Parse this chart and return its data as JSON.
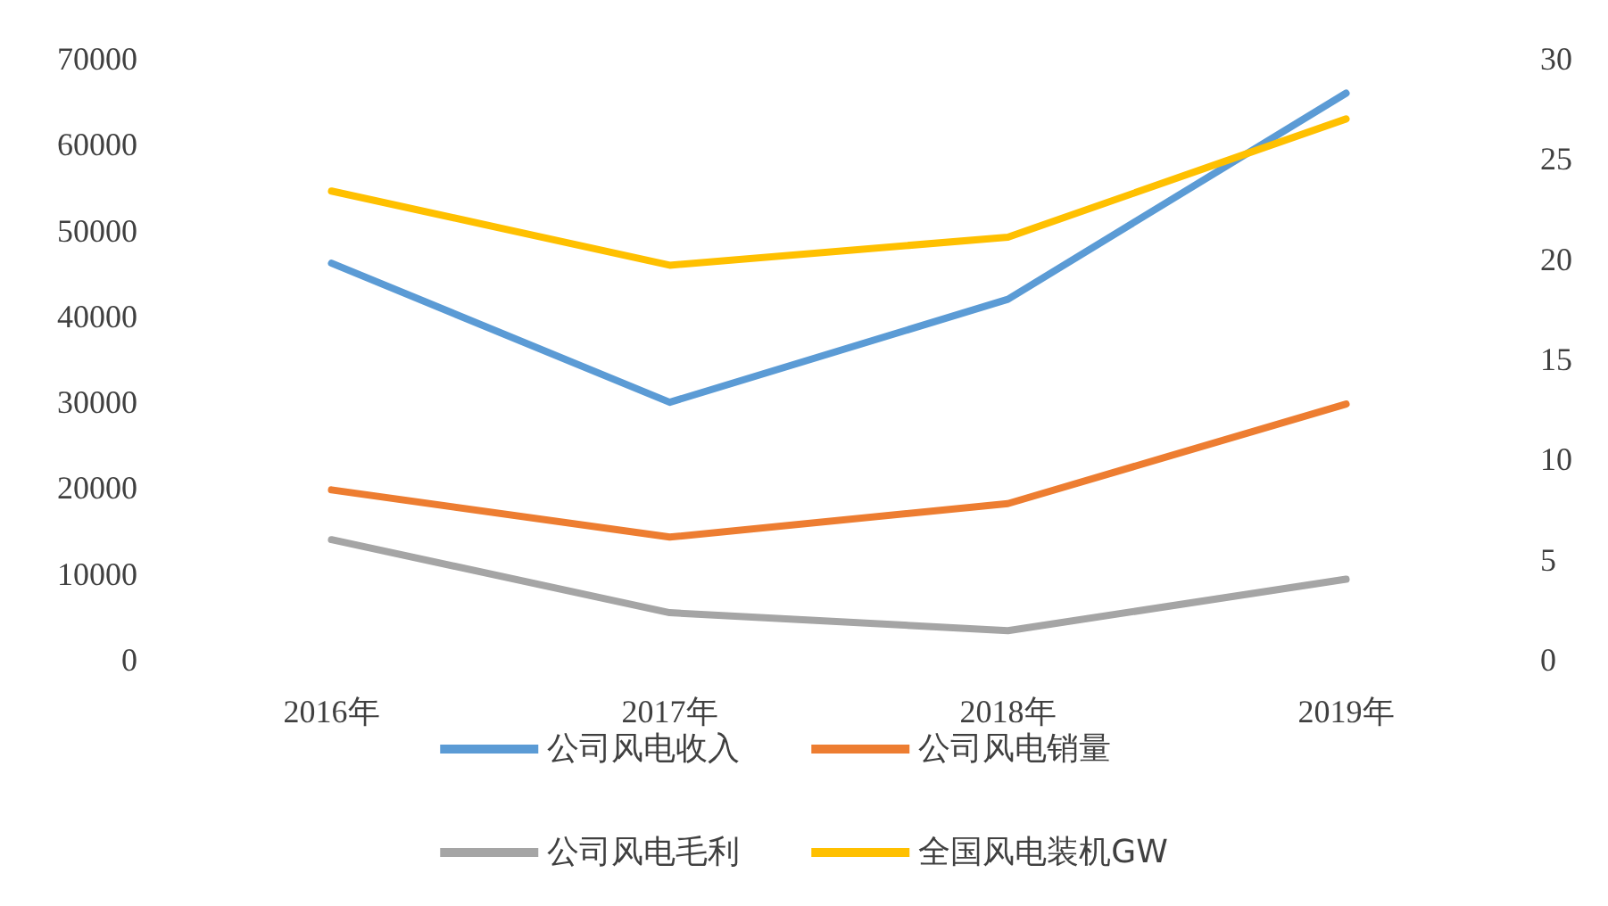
{
  "chart_data": {
    "type": "line",
    "categories": [
      "2016年",
      "2017年",
      "2018年",
      "2019年"
    ],
    "series": [
      {
        "name": "公司风电收入",
        "color": "#5b9bd5",
        "values": [
          46200,
          30000,
          42000,
          66000
        ]
      },
      {
        "name": "公司风电销量",
        "color": "#ed7d31",
        "values": [
          19800,
          14300,
          18200,
          29800
        ]
      },
      {
        "name": "公司风电毛利",
        "color": "#a5a5a5",
        "values": [
          14000,
          5500,
          3400,
          9400
        ]
      },
      {
        "name": "全国风电装机GW",
        "color": "#ffc000",
        "values": [
          23.4,
          19.7,
          21.1,
          27
        ],
        "axis": "y2"
      }
    ],
    "ylim": [
      0,
      70000
    ],
    "yticks": [
      0,
      10000,
      20000,
      30000,
      40000,
      50000,
      60000,
      70000
    ],
    "y2lim": [
      0,
      30
    ],
    "y2ticks": [
      0,
      5,
      10,
      15,
      20,
      25,
      30
    ],
    "grid": false,
    "legend": "bottom",
    "marker": "none",
    "line_style": "solid"
  }
}
